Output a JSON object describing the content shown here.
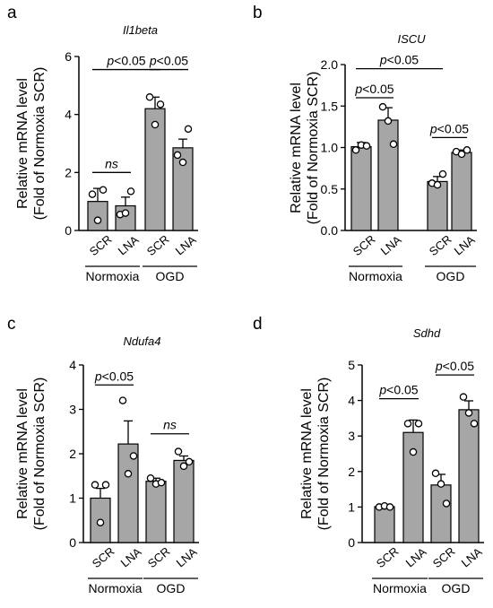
{
  "chart_data": [
    {
      "panel_label": "a",
      "type": "bar",
      "title": "Il1beta",
      "ylabel": [
        "Relative mRNA level",
        "(Fold of Normoxia SCR)"
      ],
      "ylim": [
        0,
        6
      ],
      "yticks": [
        0,
        2,
        4,
        6
      ],
      "ytick_labels": [
        "0",
        "2",
        "4",
        "6"
      ],
      "categories": [
        "SCR",
        "LNA",
        "SCR",
        "LNA"
      ],
      "groups": [
        {
          "label": "Normoxia",
          "from": 0,
          "to": 1
        },
        {
          "label": "OGD",
          "from": 2,
          "to": 3
        }
      ],
      "values": [
        1.0,
        0.85,
        4.2,
        2.85
      ],
      "errors": [
        0.45,
        0.3,
        0.4,
        0.3
      ],
      "points": [
        [
          1.25,
          0.35,
          1.4
        ],
        [
          0.55,
          0.6,
          1.35
        ],
        [
          4.6,
          3.65,
          4.35
        ],
        [
          2.6,
          2.35,
          3.5
        ]
      ],
      "comparisons": [
        {
          "from": 0,
          "to": 1,
          "y": 2.0,
          "label": "ns"
        },
        {
          "from": 0,
          "to": 2,
          "y": 5.55,
          "label": "p<0.05"
        },
        {
          "from": 2,
          "to": 3,
          "y": 5.55,
          "label": "p<0.05"
        }
      ]
    },
    {
      "panel_label": "b",
      "type": "bar",
      "title": "ISCU",
      "ylabel": [
        "Relative mRNA level",
        "(Fold of Normoxia SCR)"
      ],
      "ylim": [
        0,
        2.0
      ],
      "yticks": [
        0,
        0.5,
        1.0,
        1.5,
        2.0
      ],
      "ytick_labels": [
        "0.0",
        "0.5",
        "1.0",
        "1.5",
        "2.0"
      ],
      "categories": [
        "SCR",
        "LNA",
        "SCR",
        "LNA"
      ],
      "groups": [
        {
          "label": "Normoxia",
          "from": 0,
          "to": 1
        },
        {
          "label": "OGD",
          "from": 2,
          "to": 3
        }
      ],
      "values": [
        1.01,
        1.33,
        0.59,
        0.94
      ],
      "errors": [
        0.05,
        0.15,
        0.06,
        0.03
      ],
      "points": [
        [
          0.97,
          1.03,
          1.02
        ],
        [
          1.49,
          1.32,
          1.04
        ],
        [
          0.57,
          0.55,
          0.68
        ],
        [
          0.95,
          0.92,
          0.97
        ]
      ],
      "comparisons": [
        {
          "from": 0,
          "to": 2,
          "y": 1.95,
          "label": "p<0.05"
        },
        {
          "from": 0,
          "to": 1,
          "y": 1.6,
          "label": "p<0.05"
        },
        {
          "from": 2,
          "to": 3,
          "y": 1.12,
          "label": "p<0.05"
        }
      ]
    },
    {
      "panel_label": "c",
      "type": "bar",
      "title": "Ndufa4",
      "ylabel": [
        "Relative mRNA level",
        "(Fold of Normoxia SCR)"
      ],
      "ylim": [
        0,
        4
      ],
      "yticks": [
        0,
        1,
        2,
        3,
        4
      ],
      "ytick_labels": [
        "0",
        "1",
        "2",
        "3",
        "4"
      ],
      "categories": [
        "SCR",
        "LNA",
        "SCR",
        "LNA"
      ],
      "groups": [
        {
          "label": "Normoxia",
          "from": 0,
          "to": 1
        },
        {
          "label": "OGD",
          "from": 2,
          "to": 3
        }
      ],
      "values": [
        1.0,
        2.22,
        1.38,
        1.85
      ],
      "errors": [
        0.22,
        0.52,
        0.07,
        0.1
      ],
      "points": [
        [
          1.3,
          0.45,
          1.3
        ],
        [
          3.2,
          1.55,
          1.95
        ],
        [
          1.45,
          1.32,
          1.35
        ],
        [
          2.05,
          1.72,
          1.82
        ]
      ],
      "comparisons": [
        {
          "from": 0,
          "to": 1,
          "y": 3.55,
          "label": "p<0.05"
        },
        {
          "from": 2,
          "to": 3,
          "y": 2.45,
          "label": "ns"
        }
      ]
    },
    {
      "panel_label": "d",
      "type": "bar",
      "title": "Sdhd",
      "ylabel": [
        "Relative mRNA level",
        "(Fold of Normoxia SCR)"
      ],
      "ylim": [
        0,
        5
      ],
      "yticks": [
        0,
        1,
        2,
        3,
        4,
        5
      ],
      "ytick_labels": [
        "0",
        "1",
        "2",
        "3",
        "4",
        "5"
      ],
      "categories": [
        "SCR",
        "LNA",
        "SCR",
        "LNA"
      ],
      "groups": [
        {
          "label": "Normoxia",
          "from": 0,
          "to": 1
        },
        {
          "label": "OGD",
          "from": 2,
          "to": 3
        }
      ],
      "values": [
        1.01,
        3.1,
        1.62,
        3.74
      ],
      "errors": [
        0.03,
        0.35,
        0.3,
        0.25
      ],
      "points": [
        [
          1.0,
          1.03,
          1.0
        ],
        [
          3.35,
          2.55,
          3.35
        ],
        [
          1.95,
          1.65,
          1.1
        ],
        [
          4.1,
          3.65,
          3.35
        ]
      ],
      "comparisons": [
        {
          "from": 0,
          "to": 1,
          "y": 4.05,
          "label": "p<0.05"
        },
        {
          "from": 2,
          "to": 3,
          "y": 4.72,
          "label": "p<0.05"
        }
      ]
    }
  ]
}
